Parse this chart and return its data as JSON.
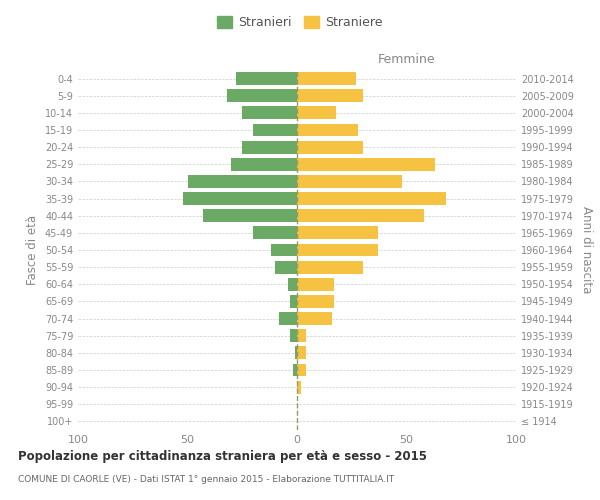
{
  "age_groups": [
    "100+",
    "95-99",
    "90-94",
    "85-89",
    "80-84",
    "75-79",
    "70-74",
    "65-69",
    "60-64",
    "55-59",
    "50-54",
    "45-49",
    "40-44",
    "35-39",
    "30-34",
    "25-29",
    "20-24",
    "15-19",
    "10-14",
    "5-9",
    "0-4"
  ],
  "birth_years": [
    "≤ 1914",
    "1915-1919",
    "1920-1924",
    "1925-1929",
    "1930-1934",
    "1935-1939",
    "1940-1944",
    "1945-1949",
    "1950-1954",
    "1955-1959",
    "1960-1964",
    "1965-1969",
    "1970-1974",
    "1975-1979",
    "1980-1984",
    "1985-1989",
    "1990-1994",
    "1995-1999",
    "2000-2004",
    "2005-2009",
    "2010-2014"
  ],
  "males": [
    0,
    0,
    0,
    2,
    1,
    3,
    8,
    3,
    4,
    10,
    12,
    20,
    43,
    52,
    50,
    30,
    25,
    20,
    25,
    32,
    28
  ],
  "females": [
    0,
    0,
    2,
    4,
    4,
    4,
    16,
    17,
    17,
    30,
    37,
    37,
    58,
    68,
    48,
    63,
    30,
    28,
    18,
    30,
    27
  ],
  "male_color": "#6aaa64",
  "female_color": "#f5c242",
  "background_color": "#ffffff",
  "grid_color": "#cccccc",
  "title": "Popolazione per cittadinanza straniera per età e sesso - 2015",
  "subtitle": "COMUNE DI CAORLE (VE) - Dati ISTAT 1° gennaio 2015 - Elaborazione TUTTITALIA.IT",
  "xlabel_right": "Femmine",
  "ylabel_left": "Fasce di età",
  "ylabel_right": "Anni di nascita",
  "xlim": 100,
  "legend_labels": [
    "Stranieri",
    "Straniere"
  ]
}
